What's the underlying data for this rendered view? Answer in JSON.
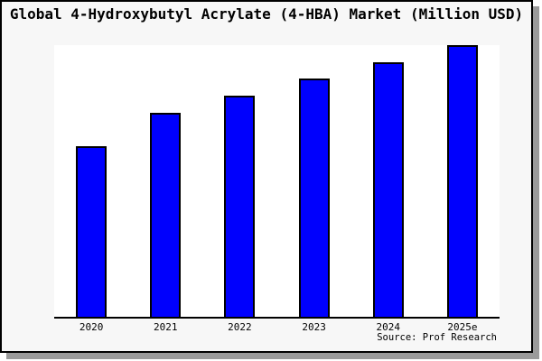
{
  "chart_data": {
    "type": "bar",
    "title": "Global 4-Hydroxybutyl Acrylate (4-HBA) Market (Million USD)",
    "categories": [
      "2020",
      "2021",
      "2022",
      "2023",
      "2024",
      "2025e"
    ],
    "values": [
      62.8,
      75.1,
      81.4,
      87.7,
      93.7,
      100
    ],
    "values_note": "No y-axis ticks are shown in the chart; values are estimated relative bar heights normalized to 2025e = 100",
    "xlabel": "",
    "ylabel": "",
    "ylim": [
      0,
      100
    ],
    "grid": false,
    "legend": false,
    "source": "Source: Prof Research",
    "colors": {
      "bar_fill": "#0000fd",
      "bar_border": "#000000",
      "plot_background": "#ffffff",
      "figure_background": "#f7f7f7",
      "axis_line": "#000000",
      "shadow": "#9a9a9a",
      "text": "#000000"
    }
  }
}
